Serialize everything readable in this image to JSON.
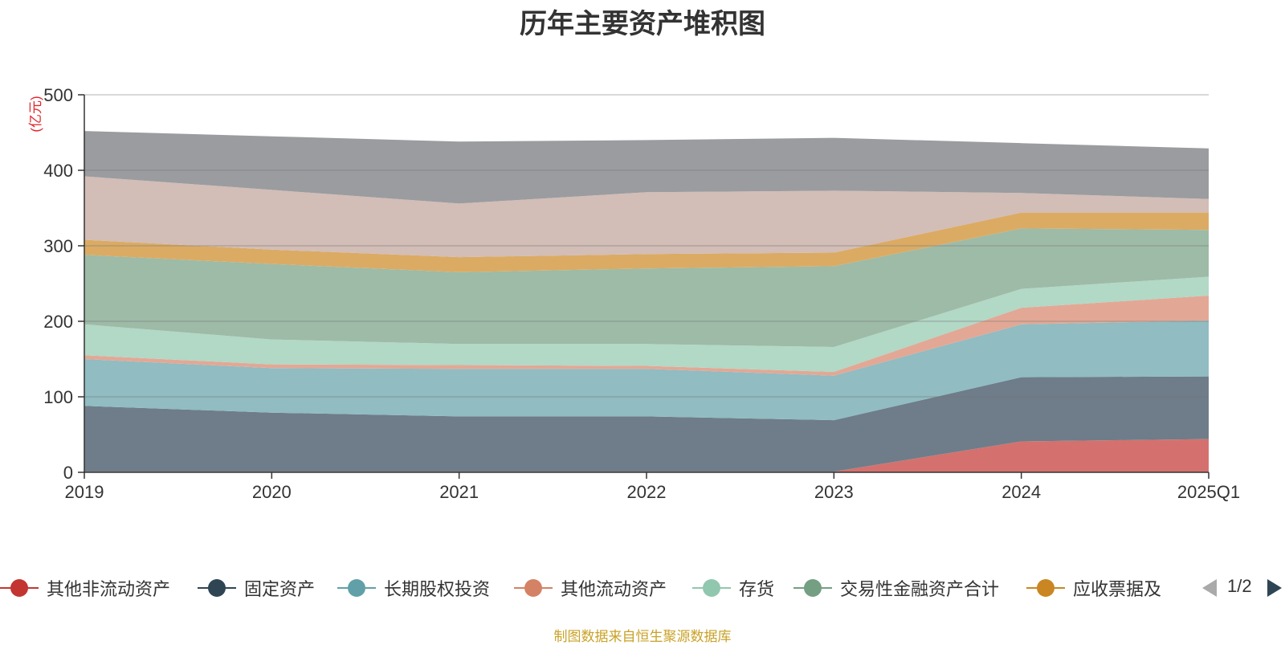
{
  "title": "历年主要资产堆积图",
  "source_text": "制图数据来自恒生聚源数据库",
  "legend_pager": "1/2",
  "chart_data": {
    "type": "area",
    "stacked": true,
    "unit_label": "(亿元)",
    "categories": [
      "2019",
      "2020",
      "2021",
      "2022",
      "2023",
      "2024",
      "2025Q1"
    ],
    "ylim": [
      0,
      500
    ],
    "yticks": [
      0,
      100,
      200,
      300,
      400,
      500
    ],
    "grid": true,
    "legend_position": "bottom",
    "series": [
      {
        "name": "其他非流动资产",
        "legend_color": "#c23531",
        "fill": "#d4716e",
        "values": [
          1,
          1,
          1,
          1,
          1,
          41,
          44
        ]
      },
      {
        "name": "固定资产",
        "legend_color": "#2f4554",
        "fill": "#6e7d89",
        "values": [
          87,
          78,
          73,
          73,
          68,
          85,
          83
        ]
      },
      {
        "name": "长期股权投资",
        "legend_color": "#61a0a8",
        "fill": "#90bcc2",
        "values": [
          62,
          59,
          63,
          63,
          59,
          70,
          74
        ]
      },
      {
        "name": "其他流动资产",
        "legend_color": "#d48265",
        "fill": "#e2a895",
        "values": [
          5,
          5,
          5,
          4,
          5,
          22,
          33
        ]
      },
      {
        "name": "存货",
        "legend_color": "#91c7ae",
        "fill": "#b2d8c6",
        "values": [
          41,
          33,
          28,
          29,
          33,
          25,
          25
        ]
      },
      {
        "name": "交易性金融资产合计",
        "legend_color": "#749f83",
        "fill": "#9dbba7",
        "values": [
          92,
          100,
          95,
          100,
          107,
          80,
          62
        ]
      },
      {
        "name": "应收票据及",
        "legend_color": "#ca8622",
        "fill": "#dbab64",
        "values": [
          20,
          19,
          20,
          19,
          18,
          21,
          23
        ]
      },
      {
        "name": "",
        "fill": "#d2bdb7",
        "values": [
          84,
          79,
          71,
          82,
          82,
          26,
          18
        ]
      },
      {
        "name": "",
        "fill": "#9b9c9f",
        "values": [
          60,
          71,
          82,
          69,
          70,
          66,
          67
        ]
      }
    ]
  }
}
